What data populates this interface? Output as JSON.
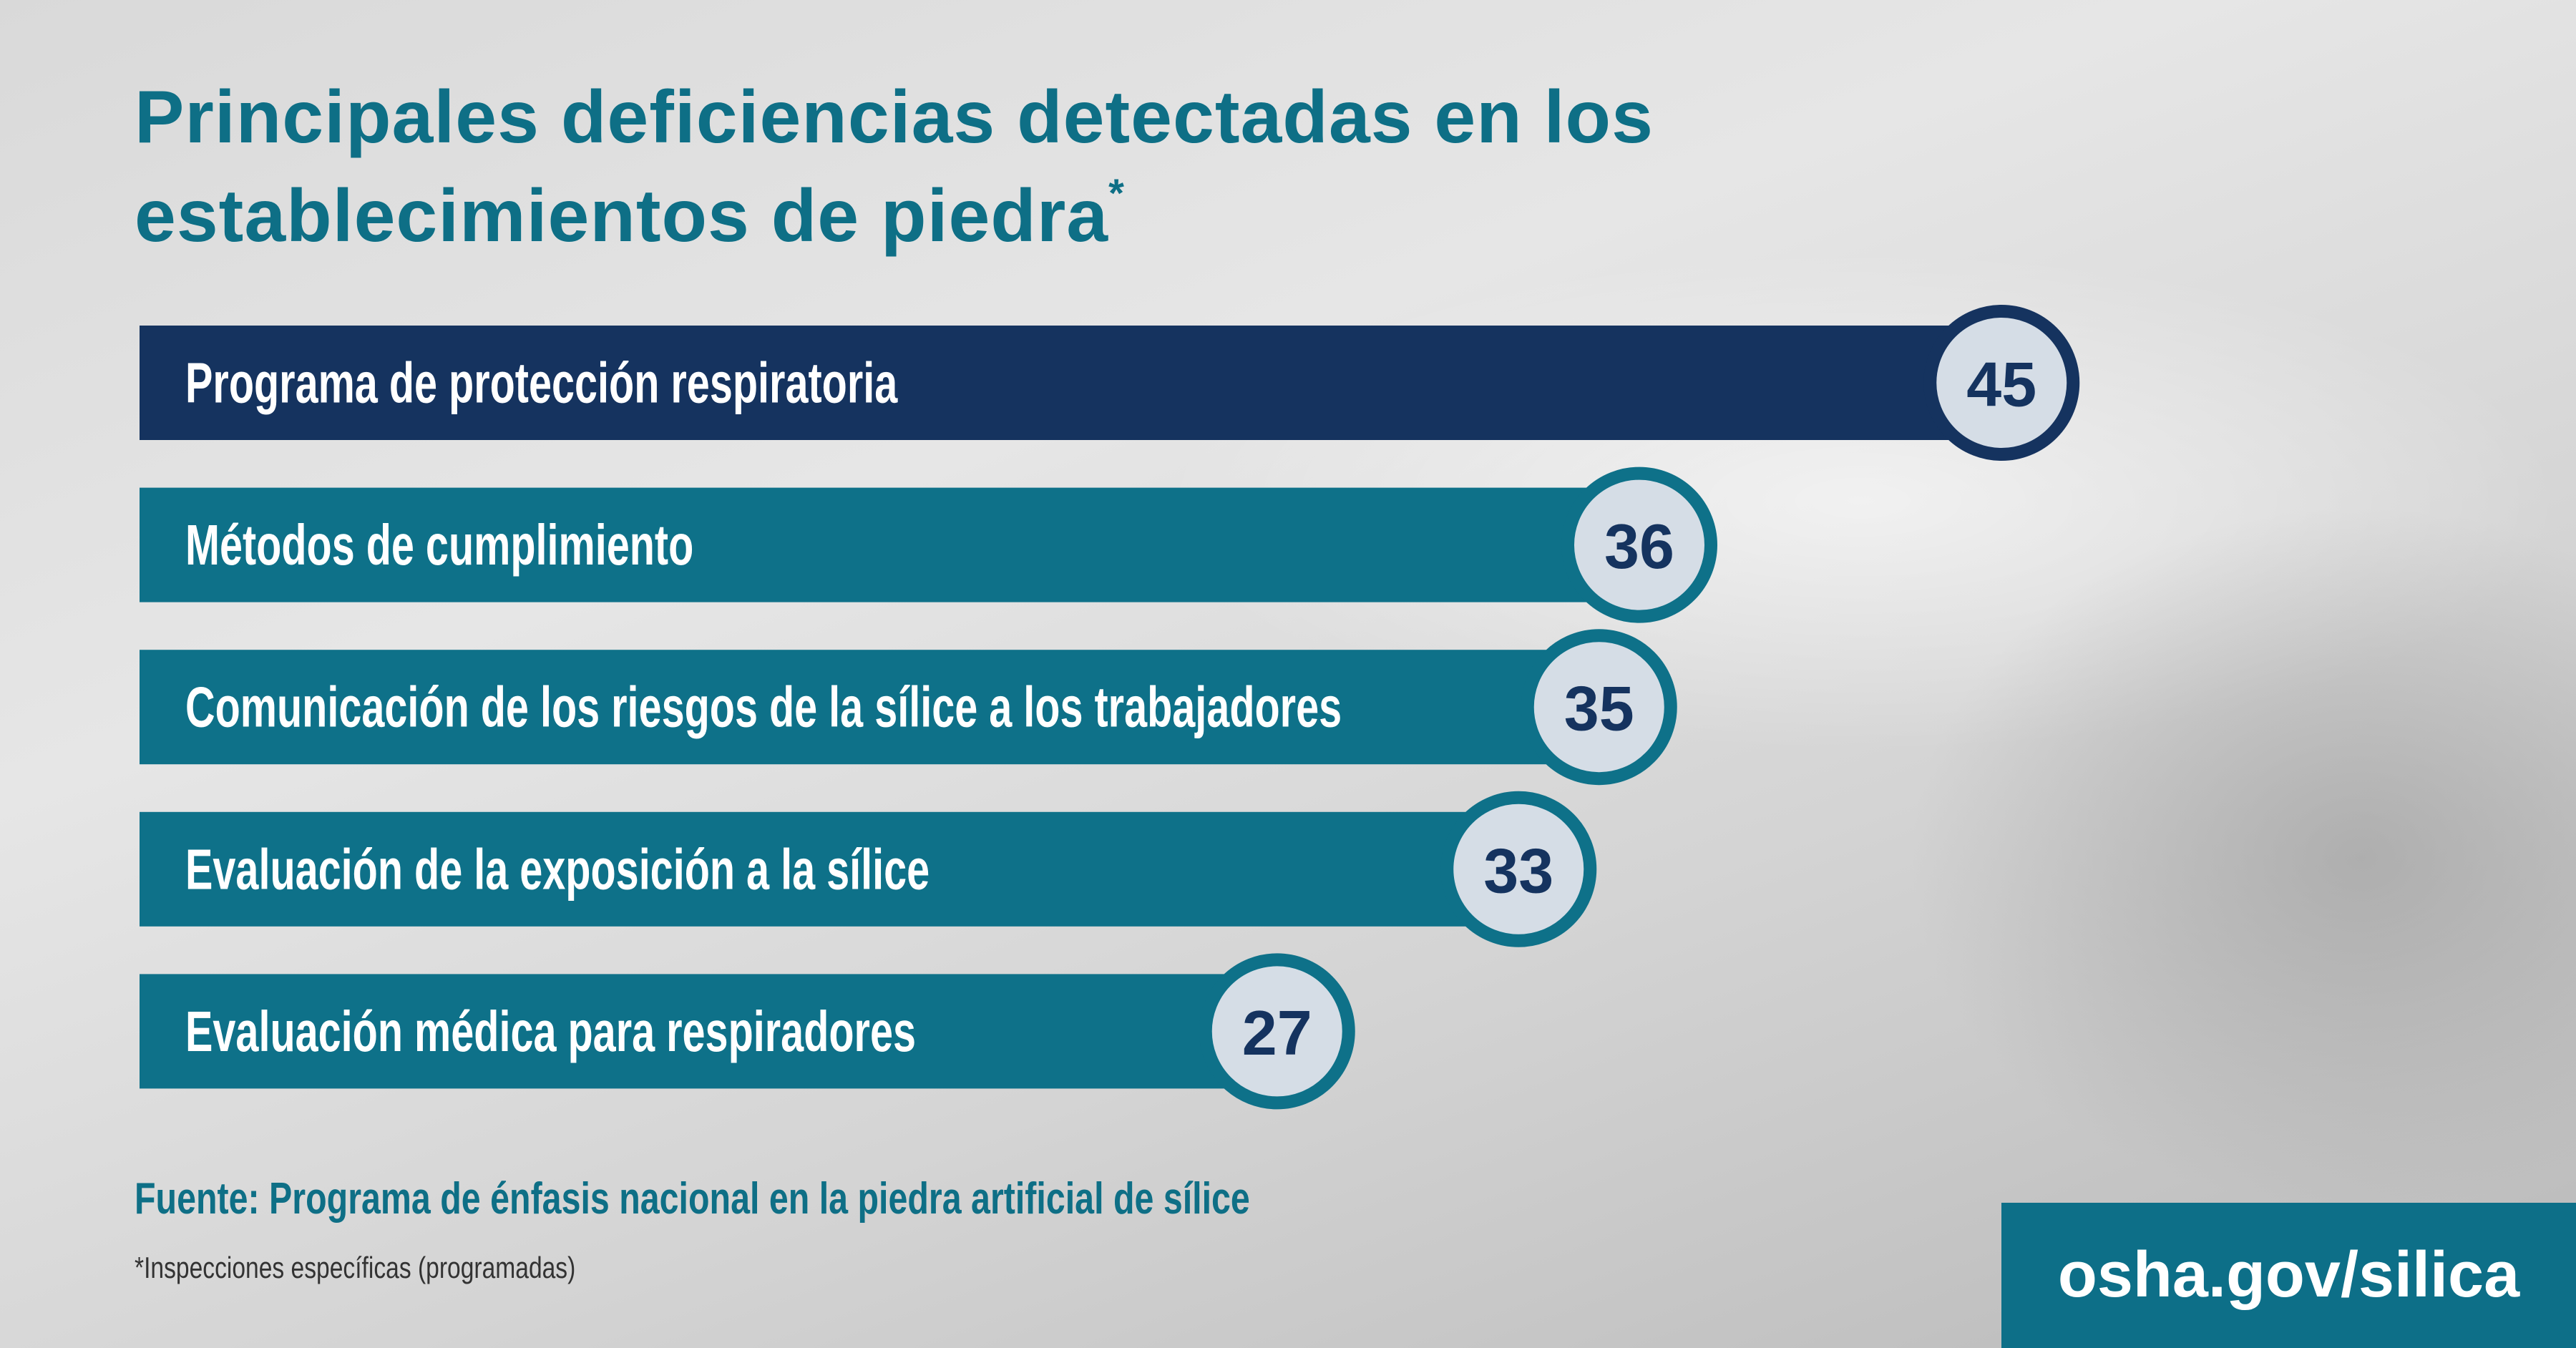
{
  "chart_data": {
    "type": "bar",
    "title": "Principales deficiencias detectadas en los establecimientos de piedra",
    "title_note": "*",
    "categories": [
      "Programa de protección respiratoria",
      "Métodos de cumplimiento",
      "Comunicación de los riesgos de la sílice a los trabajadores",
      "Evaluación de la exposición a la sílice",
      "Evaluación médica para respiradores"
    ],
    "values": [
      45,
      36,
      35,
      33,
      27
    ],
    "colors": [
      "#15335f",
      "#0e7189",
      "#0e7189",
      "#0e7189",
      "#0e7189"
    ],
    "source": "Fuente: Programa de énfasis nacional en la piedra artificial de sílice",
    "footnote": "*Inspecciones específicas (programadas)",
    "url": "osha.gov/silica"
  }
}
